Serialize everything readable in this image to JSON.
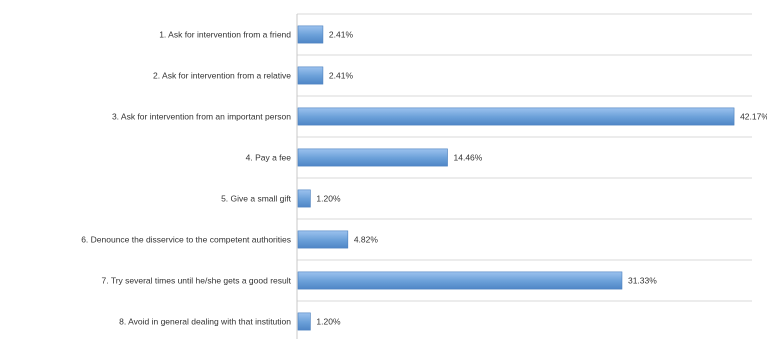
{
  "chart_data": {
    "type": "bar",
    "orientation": "horizontal",
    "categories": [
      "1. Ask for intervention from a friend",
      "2. Ask for intervention from a relative",
      "3. Ask for intervention from an important person",
      "4. Pay a fee",
      "5. Give a small gift",
      "6. Denounce the disservice to the competent authorities",
      "7. Try several times until he/she gets a good result",
      "8. Avoid in general dealing with that institution"
    ],
    "values": [
      2.41,
      2.41,
      42.17,
      14.46,
      1.2,
      4.82,
      31.33,
      1.2
    ],
    "value_labels": [
      "2.41%",
      "2.41%",
      "42.17%",
      "14.46%",
      "1.20%",
      "4.82%",
      "31.33%",
      "1.20%"
    ],
    "xlim": [
      0,
      44
    ],
    "bar_color": "#6a9fd8",
    "grid": true,
    "legend": "none"
  }
}
